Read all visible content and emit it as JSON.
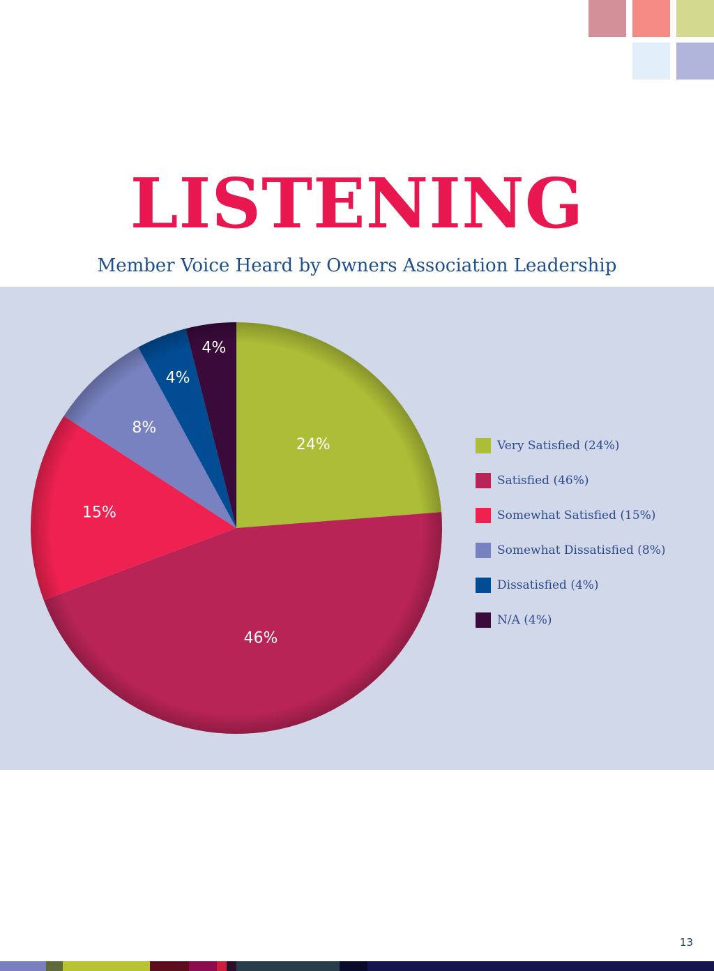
{
  "colors": {
    "title": "#e8174f",
    "subtitle": "#1c4f8c",
    "panel_bg": "#d0d8ea",
    "legend_text": "#2e4a8c",
    "page_number": "#1c3a78",
    "slice_label": "#ffffff",
    "deco_squares": [
      "#d49098",
      "#f58b84",
      "#d3d98e",
      "#e0eff9",
      "#b1b5dc"
    ],
    "footer_segments": [
      "#7a7fbf",
      "#5e6a3a",
      "#b7c330",
      "#5c0d20",
      "#8b0d4e",
      "#cc1f3e",
      "#2a0e2a",
      "#283c4a",
      "#0a0a2a",
      "#14154c"
    ]
  },
  "header": {
    "title": "LISTENING",
    "subtitle": "Member Voice Heard by Owners Association Leadership"
  },
  "chart_data": {
    "type": "pie",
    "title": "",
    "start_angle_deg": 0,
    "direction": "clockwise",
    "slices": [
      {
        "name": "Very Satisfied (24%)",
        "value": 24,
        "label": "24%",
        "color": "#acbe37"
      },
      {
        "name": "Satisfied (46%)",
        "value": 46,
        "label": "46%",
        "color": "#b92456"
      },
      {
        "name": "Somewhat Satisfied (15%)",
        "value": 15,
        "label": "15%",
        "color": "#ee2150"
      },
      {
        "name": "Somewhat Dissatisfied (8%)",
        "value": 8,
        "label": "8%",
        "color": "#7882c0"
      },
      {
        "name": "Dissatisfied (4%)",
        "value": 4,
        "label": "4%",
        "color": "#014c93"
      },
      {
        "name": "N/A (4%)",
        "value": 4,
        "label": "4%",
        "color": "#3a0a3a"
      }
    ],
    "legend_position": "right"
  },
  "footer": {
    "page_number": "13"
  }
}
